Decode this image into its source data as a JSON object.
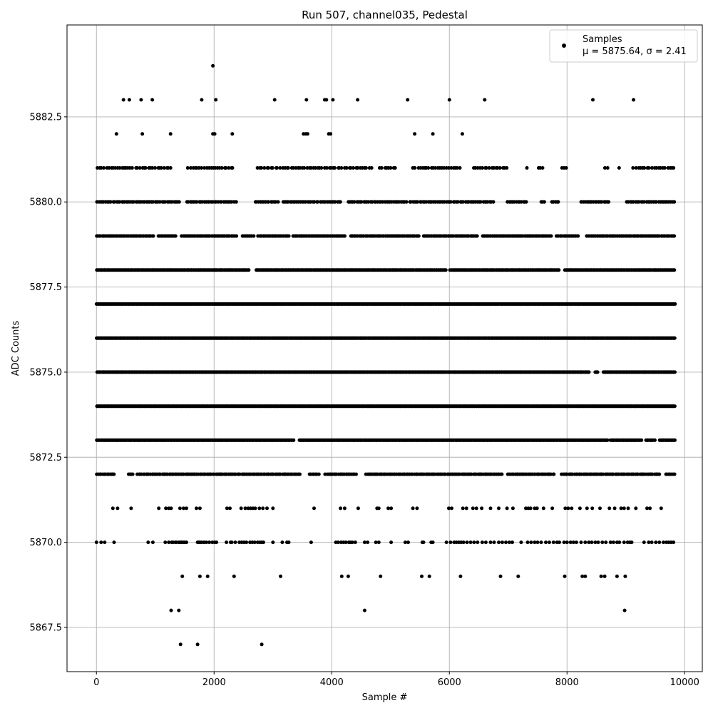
{
  "chart_data": {
    "type": "scatter",
    "title": "Run 507, channel035, Pedestal",
    "xlabel": "Sample #",
    "ylabel": "ADC Counts",
    "xlim": [
      -500,
      10300
    ],
    "ylim": [
      5866.2,
      5885.2
    ],
    "xticks": [
      0,
      2000,
      4000,
      6000,
      8000,
      10000
    ],
    "xtick_labels": [
      "0",
      "2000",
      "4000",
      "6000",
      "8000",
      "10000"
    ],
    "yticks": [
      5867.5,
      5870.0,
      5872.5,
      5875.0,
      5877.5,
      5880.0,
      5882.5
    ],
    "ytick_labels": [
      "5867.5",
      "5870.0",
      "5872.5",
      "5875.0",
      "5877.5",
      "5880.0",
      "5882.5"
    ],
    "grid": true,
    "legend_position": "top-right",
    "marker_color": "#000000",
    "series": [
      {
        "name": "Samples",
        "stats_label": "μ = 5875.64, σ = 2.41",
        "x_range": [
          0,
          9840
        ],
        "levels": [
          {
            "y": 5884,
            "x": [
              1980
            ]
          },
          {
            "y": 5883,
            "x": [
              460,
              560,
              760,
              950,
              1790,
              2030,
              3030,
              3570,
              3880,
              3910,
              4020,
              4440,
              5290,
              6000,
              6600,
              8440,
              9130
            ]
          },
          {
            "y": 5882,
            "x": [
              340,
              780,
              1260,
              1980,
              2010,
              2310,
              3520,
              3560,
              3590,
              3950,
              3980,
              5410,
              5720,
              6220
            ]
          },
          {
            "y": 5867,
            "x": [
              1430,
              1720,
              2810
            ]
          },
          {
            "y": 5868,
            "x": [
              1270,
              1400,
              4560,
              8980
            ]
          },
          {
            "y": 5869,
            "x": [
              1460,
              1760,
              1890,
              2340,
              3130,
              4170,
              4280,
              4830,
              5530,
              5660,
              6190,
              6870,
              7170,
              7960,
              8260,
              8310,
              8580,
              8640,
              8850,
              8990
            ]
          },
          {
            "y": 5871,
            "x": [
              280,
              360,
              590,
              1060,
              1180,
              1230,
              1270,
              1420,
              1480,
              1530,
              1700,
              1760,
              2220,
              2270,
              2460,
              2530,
              2580,
              2620,
              2660,
              2700,
              2770,
              2830,
              2900,
              3000,
              3700,
              4150,
              4220,
              4450,
              4770,
              4800,
              4960,
              5010,
              5380,
              5450,
              5990,
              6040,
              6230,
              6290,
              6400,
              6460,
              6550,
              6700,
              6840,
              6980,
              7080,
              7300,
              7340,
              7380,
              7450,
              7490,
              7600,
              7750,
              7970,
              8020,
              8080,
              8220,
              8340,
              8430,
              8560,
              8720,
              8810,
              8920,
              8970,
              9040,
              9170,
              9360,
              9410,
              9600
            ]
          },
          {
            "y": 5870,
            "x": [
              0,
              80,
              140,
              300,
              880,
              960,
              1170,
              1230,
              1280,
              1300,
              1340,
              1360,
              1400,
              1430,
              1440,
              1450,
              1480,
              1500,
              1530,
              1720,
              1740,
              1760,
              1790,
              1830,
              1870,
              1920,
              1970,
              2010,
              2040,
              2210,
              2280,
              2300,
              2360,
              2430,
              2470,
              2510,
              2550,
              2610,
              2650,
              2690,
              2740,
              2780,
              2810,
              2840,
              3000,
              3160,
              3240,
              3270,
              3650,
              4070,
              4110,
              4160,
              4200,
              4240,
              4290,
              4320,
              4350,
              4400,
              4560,
              4610,
              4750,
              4800,
              5010,
              5250,
              5300,
              5540,
              5560,
              5690,
              5720,
              5950,
              6020,
              6080,
              6120,
              6160,
              6200,
              6240,
              6300,
              6360,
              6420,
              6480,
              6560,
              6620,
              6700,
              6760,
              6840,
              6900,
              6960,
              7020,
              7070,
              7220,
              7330,
              7390,
              7450,
              7500,
              7560,
              7640,
              7700,
              7770,
              7830,
              7870,
              7950,
              8000,
              8060,
              8110,
              8160,
              8240,
              8310,
              8370,
              8420,
              8480,
              8530,
              8600,
              8660,
              8740,
              8790,
              8850,
              8890,
              8970,
              9030,
              9070,
              9100,
              9310,
              9390,
              9440,
              9510,
              9570,
              9640,
              9690,
              9730,
              9770,
              9810
            ]
          }
        ],
        "dense_levels": [
          {
            "y": 5881,
            "points": 260,
            "gaps": [
              [
                1280,
                1550
              ],
              [
                2350,
                2700
              ],
              [
                4700,
                4800
              ],
              [
                5100,
                5350
              ],
              [
                6220,
                6380
              ],
              [
                7000,
                7300
              ],
              [
                7350,
                7500
              ],
              [
                7600,
                7900
              ],
              [
                8000,
                8450
              ],
              [
                8480,
                8600
              ],
              [
                8700,
                8850
              ],
              [
                8900,
                9100
              ]
            ]
          },
          {
            "y": 5880,
            "points": 330,
            "gaps": [
              [
                1430,
                1530
              ],
              [
                2380,
                2670
              ],
              [
                3100,
                3160
              ],
              [
                4180,
                4250
              ],
              [
                5270,
                5330
              ],
              [
                6760,
                6960
              ],
              [
                7350,
                7560
              ],
              [
                7620,
                7730
              ],
              [
                7850,
                8230
              ],
              [
                8720,
                9000
              ]
            ]
          },
          {
            "y": 5879,
            "points": 470,
            "gaps": [
              [
                990,
                1050
              ],
              [
                1350,
                1440
              ],
              [
                2380,
                2460
              ],
              [
                2680,
                2740
              ],
              [
                3280,
                3330
              ],
              [
                4230,
                4300
              ],
              [
                5500,
                5560
              ],
              [
                6480,
                6550
              ],
              [
                7760,
                7800
              ],
              [
                8200,
                8320
              ]
            ]
          },
          {
            "y": 5878,
            "points": 560,
            "gaps": [
              [
                2600,
                2700
              ],
              [
                5950,
                6000
              ],
              [
                7880,
                7950
              ]
            ]
          },
          {
            "y": 5877,
            "points": 880,
            "gaps": []
          },
          {
            "y": 5876,
            "points": 880,
            "gaps": []
          },
          {
            "y": 5875,
            "points": 640,
            "gaps": [
              [
                8380,
                8470
              ],
              [
                8540,
                8600
              ]
            ]
          },
          {
            "y": 5874,
            "points": 880,
            "gaps": []
          },
          {
            "y": 5873,
            "points": 640,
            "gaps": [
              [
                3370,
                3450
              ],
              [
                8690,
                8730
              ],
              [
                9270,
                9340
              ],
              [
                9500,
                9560
              ]
            ]
          },
          {
            "y": 5872,
            "points": 400,
            "gaps": [
              [
                320,
                540
              ],
              [
                640,
                680
              ],
              [
                3460,
                3620
              ],
              [
                3800,
                3880
              ],
              [
                4440,
                4560
              ],
              [
                6900,
                6970
              ],
              [
                7800,
                7880
              ],
              [
                9600,
                9660
              ]
            ]
          }
        ]
      }
    ]
  }
}
